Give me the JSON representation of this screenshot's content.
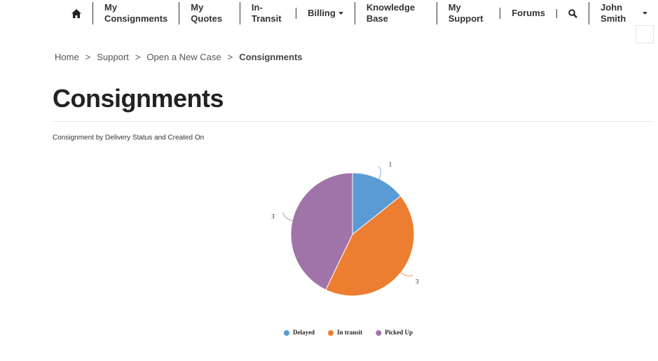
{
  "nav": {
    "items": [
      "My Consignments",
      "My Quotes",
      "In-Transit",
      "Billing",
      "Knowledge Base",
      "My Support",
      "Forums"
    ],
    "user": "John Smith"
  },
  "breadcrumb": {
    "items": [
      "Home",
      "Support",
      "Open a New Case"
    ],
    "separator": ">",
    "current": "Consignments"
  },
  "heading": "Consignments",
  "chart_data": {
    "type": "pie",
    "title": "Consignment by Delivery Status and Created On",
    "categories": [
      "Delayed",
      "In transit",
      "Picked Up"
    ],
    "values": [
      1,
      3,
      3
    ],
    "colors": [
      "#5b9bd5",
      "#ed7d31",
      "#a074a8"
    ],
    "legend": "bottom"
  }
}
